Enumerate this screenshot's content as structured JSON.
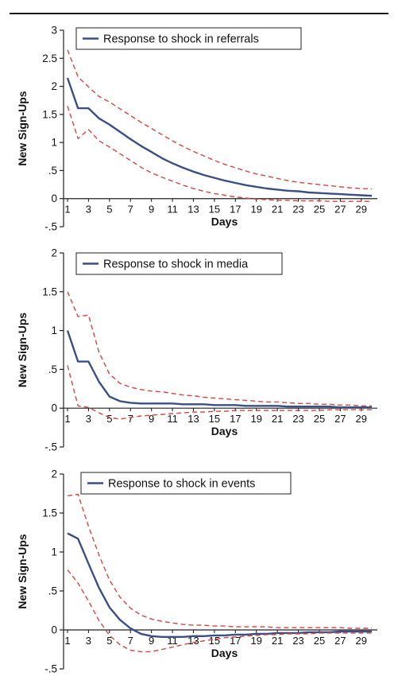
{
  "colors": {
    "response_line": "#3a4f86",
    "confidence_band": "#d6453f",
    "axis": "#222222"
  },
  "chart_data": [
    {
      "type": "line",
      "legend": "Response to shock in referrals",
      "legend_position": "top-left",
      "xlabel": "Days",
      "ylabel": "New Sign-Ups",
      "xlim": [
        1,
        30
      ],
      "ylim": [
        -0.5,
        3
      ],
      "x_ticks": [
        1,
        3,
        5,
        7,
        9,
        11,
        13,
        15,
        17,
        19,
        21,
        23,
        25,
        27,
        29
      ],
      "y_ticks": [
        "3",
        "2.5",
        "2",
        "1.5",
        "1",
        ".5",
        "0",
        "-.5"
      ],
      "y_tick_values": [
        3,
        2.5,
        2,
        1.5,
        1,
        0.5,
        0,
        -0.5
      ],
      "grid": false,
      "x": [
        1,
        2,
        3,
        4,
        5,
        6,
        7,
        8,
        9,
        10,
        11,
        12,
        13,
        14,
        15,
        16,
        17,
        18,
        19,
        20,
        21,
        22,
        23,
        24,
        25,
        26,
        27,
        28,
        29,
        30
      ],
      "series": [
        {
          "name": "Response to shock in referrals",
          "style": "solid",
          "values": [
            2.15,
            1.61,
            1.61,
            1.43,
            1.32,
            1.19,
            1.06,
            0.94,
            0.83,
            0.72,
            0.63,
            0.55,
            0.48,
            0.42,
            0.37,
            0.32,
            0.28,
            0.24,
            0.21,
            0.18,
            0.16,
            0.14,
            0.13,
            0.11,
            0.1,
            0.09,
            0.08,
            0.07,
            0.06,
            0.05
          ]
        },
        {
          "style": "dashed",
          "values": [
            2.65,
            2.17,
            1.99,
            1.82,
            1.72,
            1.6,
            1.48,
            1.36,
            1.25,
            1.14,
            1.03,
            0.93,
            0.84,
            0.76,
            0.68,
            0.61,
            0.55,
            0.49,
            0.44,
            0.4,
            0.36,
            0.32,
            0.29,
            0.27,
            0.25,
            0.23,
            0.21,
            0.19,
            0.18,
            0.17
          ]
        },
        {
          "style": "dashed",
          "values": [
            1.65,
            1.07,
            1.23,
            1.03,
            0.92,
            0.8,
            0.68,
            0.56,
            0.46,
            0.38,
            0.31,
            0.24,
            0.18,
            0.13,
            0.09,
            0.06,
            0.03,
            0.01,
            -0.01,
            -0.02,
            -0.03,
            -0.03,
            -0.04,
            -0.04,
            -0.04,
            -0.05,
            -0.05,
            -0.05,
            -0.05,
            -0.05
          ]
        }
      ]
    },
    {
      "type": "line",
      "legend": "Response to shock in media",
      "legend_position": "top-left",
      "xlabel": "Days",
      "ylabel": "New Sign-Ups",
      "xlim": [
        1,
        30
      ],
      "ylim": [
        -0.5,
        2
      ],
      "x_ticks": [
        1,
        3,
        5,
        7,
        9,
        11,
        13,
        15,
        17,
        19,
        21,
        23,
        25,
        27,
        29
      ],
      "y_ticks": [
        "2",
        "1.5",
        "1",
        ".5",
        "0",
        "-.5"
      ],
      "y_tick_values": [
        2,
        1.5,
        1,
        0.5,
        0,
        -0.5
      ],
      "grid": false,
      "x": [
        1,
        2,
        3,
        4,
        5,
        6,
        7,
        8,
        9,
        10,
        11,
        12,
        13,
        14,
        15,
        16,
        17,
        18,
        19,
        20,
        21,
        22,
        23,
        24,
        25,
        26,
        27,
        28,
        29,
        30
      ],
      "series": [
        {
          "name": "Response to shock in media",
          "style": "solid",
          "values": [
            1.0,
            0.6,
            0.6,
            0.34,
            0.15,
            0.09,
            0.07,
            0.06,
            0.06,
            0.06,
            0.06,
            0.05,
            0.05,
            0.05,
            0.04,
            0.04,
            0.04,
            0.03,
            0.03,
            0.03,
            0.03,
            0.02,
            0.02,
            0.02,
            0.02,
            0.02,
            0.01,
            0.01,
            0.01,
            0.01
          ]
        },
        {
          "style": "dashed",
          "values": [
            1.5,
            1.18,
            1.2,
            0.72,
            0.44,
            0.32,
            0.27,
            0.24,
            0.22,
            0.21,
            0.19,
            0.17,
            0.16,
            0.14,
            0.13,
            0.12,
            0.11,
            0.1,
            0.09,
            0.08,
            0.08,
            0.07,
            0.06,
            0.06,
            0.05,
            0.05,
            0.04,
            0.04,
            0.03,
            0.03
          ]
        },
        {
          "style": "dashed",
          "values": [
            0.55,
            0.03,
            0.01,
            -0.06,
            -0.12,
            -0.14,
            -0.12,
            -0.1,
            -0.09,
            -0.08,
            -0.07,
            -0.06,
            -0.05,
            -0.05,
            -0.04,
            -0.04,
            -0.03,
            -0.03,
            -0.03,
            -0.03,
            -0.03,
            -0.03,
            -0.03,
            -0.03,
            -0.03,
            -0.02,
            -0.02,
            -0.02,
            -0.02,
            -0.02
          ]
        }
      ]
    },
    {
      "type": "line",
      "legend": "Response to shock in events",
      "legend_position": "top-left",
      "xlabel": "Days",
      "ylabel": "New Sign-Ups",
      "xlim": [
        1,
        30
      ],
      "ylim": [
        -0.5,
        2
      ],
      "x_ticks": [
        1,
        3,
        5,
        7,
        9,
        11,
        13,
        15,
        17,
        19,
        21,
        23,
        25,
        27,
        29
      ],
      "y_ticks": [
        "2",
        "1.5",
        "1",
        ".5",
        "0",
        "-.5"
      ],
      "y_tick_values": [
        2,
        1.5,
        1,
        0.5,
        0,
        -0.5
      ],
      "grid": false,
      "x": [
        1,
        2,
        3,
        4,
        5,
        6,
        7,
        8,
        9,
        10,
        11,
        12,
        13,
        14,
        15,
        16,
        17,
        18,
        19,
        20,
        21,
        22,
        23,
        24,
        25,
        26,
        27,
        28,
        29,
        30
      ],
      "series": [
        {
          "name": "Response to shock in events",
          "style": "solid",
          "values": [
            1.24,
            1.17,
            0.85,
            0.54,
            0.29,
            0.13,
            0.02,
            -0.05,
            -0.08,
            -0.09,
            -0.09,
            -0.09,
            -0.08,
            -0.08,
            -0.07,
            -0.07,
            -0.06,
            -0.06,
            -0.05,
            -0.05,
            -0.04,
            -0.04,
            -0.04,
            -0.03,
            -0.03,
            -0.03,
            -0.02,
            -0.02,
            -0.02,
            -0.02
          ]
        },
        {
          "style": "dashed",
          "values": [
            1.72,
            1.74,
            1.33,
            0.96,
            0.64,
            0.42,
            0.28,
            0.19,
            0.14,
            0.11,
            0.09,
            0.07,
            0.06,
            0.06,
            0.05,
            0.05,
            0.04,
            0.04,
            0.04,
            0.04,
            0.03,
            0.03,
            0.03,
            0.03,
            0.03,
            0.03,
            0.03,
            0.02,
            0.02,
            0.02
          ]
        },
        {
          "style": "dashed",
          "values": [
            0.77,
            0.6,
            0.37,
            0.12,
            -0.07,
            -0.19,
            -0.26,
            -0.28,
            -0.28,
            -0.25,
            -0.22,
            -0.19,
            -0.16,
            -0.14,
            -0.12,
            -0.1,
            -0.09,
            -0.08,
            -0.07,
            -0.06,
            -0.06,
            -0.05,
            -0.05,
            -0.05,
            -0.04,
            -0.04,
            -0.04,
            -0.04,
            -0.04,
            -0.04
          ]
        }
      ]
    }
  ]
}
